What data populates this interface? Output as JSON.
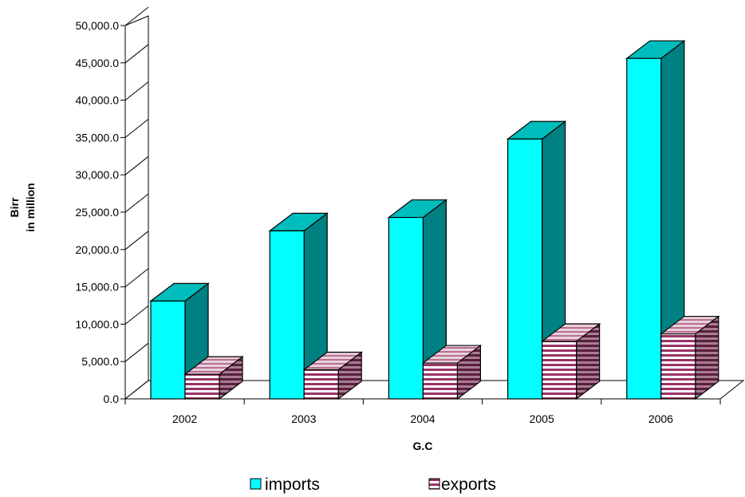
{
  "chart_data": {
    "type": "bar",
    "title": "",
    "xlabel": "G.C",
    "ylabel": [
      "Birr",
      "in million"
    ],
    "categories": [
      "2002",
      "2003",
      "2004",
      "2005",
      "2006"
    ],
    "series": [
      {
        "name": "imports",
        "values": [
          13100,
          22500,
          24300,
          34800,
          45600
        ]
      },
      {
        "name": "exports",
        "values": [
          3300,
          3900,
          4800,
          7700,
          8700
        ]
      }
    ],
    "ylim": [
      0,
      50000
    ],
    "yticks": [
      0,
      5000,
      10000,
      15000,
      20000,
      25000,
      30000,
      35000,
      40000,
      45000,
      50000
    ],
    "ytick_labels": [
      "0.0",
      "5,000.0",
      "10,000.0",
      "15,000.0",
      "20,000.0",
      "25,000.0",
      "30,000.0",
      "35,000.0",
      "40,000.0",
      "45,000.0",
      "50,000.0"
    ],
    "legend_position": "bottom",
    "grid": false,
    "style": "3d-column",
    "colors": {
      "imports_front": "#00ffff",
      "imports_top": "#00bdbd",
      "imports_side": "#008080",
      "exports_base": "#ffffff",
      "exports_stripe": "#993366",
      "exports_side": "#6b2447"
    }
  }
}
